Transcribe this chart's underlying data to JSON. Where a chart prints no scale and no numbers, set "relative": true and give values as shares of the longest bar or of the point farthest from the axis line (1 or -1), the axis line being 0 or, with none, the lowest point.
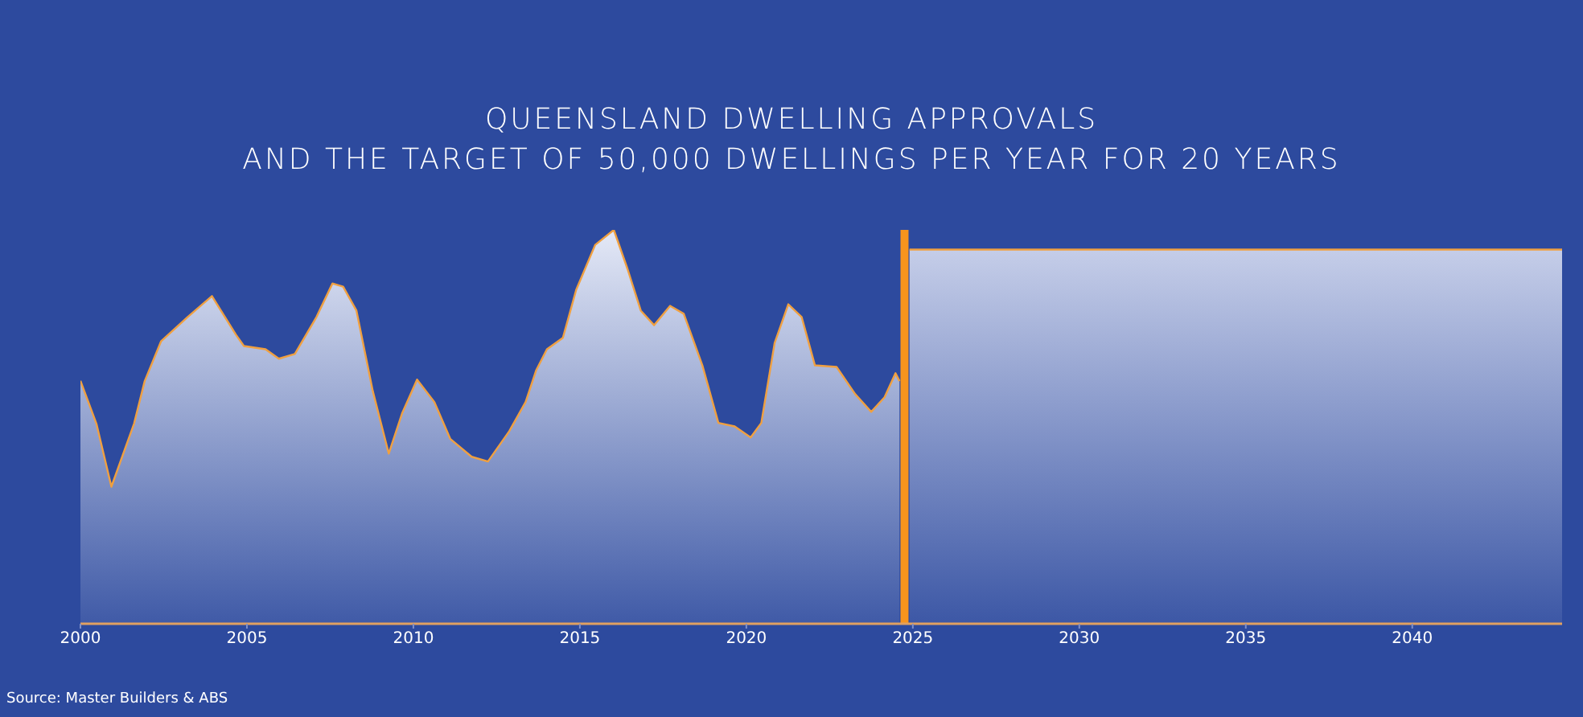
{
  "chart_data": {
    "type": "area",
    "title": "QUEENSLAND DWELLING APPROVALS",
    "subtitle": "AND THE TARGET OF 50,000 DWELLINGS PER YEAR FOR 20 YEARS",
    "annotations": [
      "Source: Master Builders & ABS"
    ],
    "relative": true,
    "xlim": [
      2000,
      2044.5
    ],
    "xticks": [
      2000,
      2005,
      2010,
      2015,
      2020,
      2025,
      2030,
      2035,
      2040
    ],
    "grid": false,
    "legend": false,
    "series": [
      {
        "color": "#e8ecf8",
        "x": [
          2000.0,
          2000.48,
          2000.93,
          2001.61,
          2001.93,
          2002.42,
          2003.22,
          2003.95,
          2004.67,
          2004.91,
          2005.56,
          2005.96,
          2006.44,
          2007.09,
          2007.57,
          2007.89,
          2008.29,
          2008.78,
          2009.26,
          2009.66,
          2010.11,
          2010.63,
          2011.11,
          2011.75,
          2012.24,
          2012.88,
          2013.37,
          2013.69,
          2014.01,
          2014.49,
          2014.89,
          2015.46,
          2016.02,
          2016.43,
          2016.83,
          2017.23,
          2017.71,
          2018.12,
          2018.68,
          2019.16,
          2019.65,
          2020.13,
          2020.45,
          2020.85,
          2021.26,
          2021.66,
          2022.06,
          2022.71,
          2023.27,
          2023.75,
          2024.15,
          2024.48,
          2024.6
        ],
        "values": [
          0.617,
          0.508,
          0.348,
          0.508,
          0.616,
          0.717,
          0.779,
          0.832,
          0.734,
          0.705,
          0.697,
          0.673,
          0.685,
          0.779,
          0.864,
          0.856,
          0.795,
          0.591,
          0.432,
          0.534,
          0.62,
          0.563,
          0.469,
          0.424,
          0.412,
          0.489,
          0.563,
          0.644,
          0.697,
          0.726,
          0.848,
          0.962,
          1,
          0.901,
          0.795,
          0.758,
          0.807,
          0.787,
          0.656,
          0.51,
          0.501,
          0.473,
          0.51,
          0.713,
          0.811,
          0.779,
          0.656,
          0.652,
          0.583,
          0.538,
          0.575,
          0.636,
          0.616
        ]
      },
      {
        "color": "#c8d0ea",
        "x": [
          2024.9,
          2044.5
        ],
        "values": [
          0.95,
          0.95
        ]
      }
    ],
    "ref_lines": [
      {
        "axis": "x",
        "value": 2024.75,
        "color": "#f7941d"
      }
    ]
  }
}
